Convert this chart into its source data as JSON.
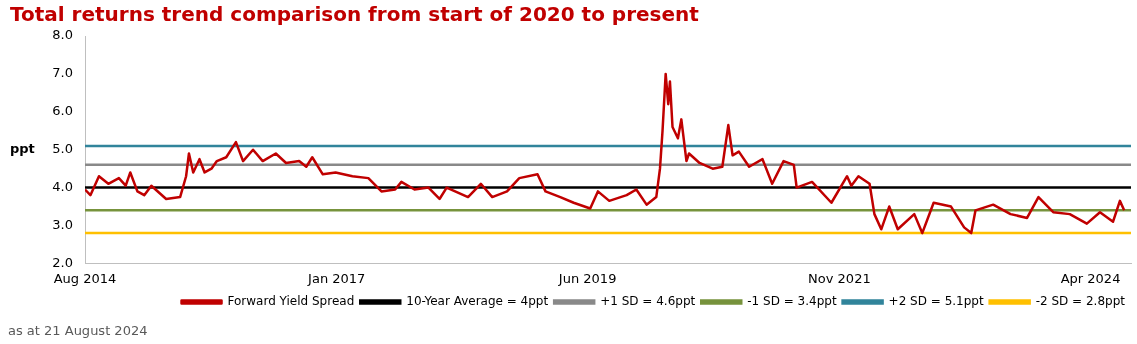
{
  "chart_data": {
    "type": "line",
    "title": "Total returns trend comparison from start of 2020 to present",
    "ylabel": "ppt",
    "annotations": [
      "as at 21 August 2024"
    ],
    "x": [
      "2014-08-01",
      "2014-08-20",
      "2014-09-19",
      "2014-10-22",
      "2014-11-28",
      "2014-12-22",
      "2015-01-07",
      "2015-02-01",
      "2015-02-25",
      "2015-03-22",
      "2015-05-13",
      "2015-07-01",
      "2015-07-22",
      "2015-08-01",
      "2015-08-16",
      "2015-09-07",
      "2015-09-25",
      "2015-10-19",
      "2015-11-07",
      "2015-12-10",
      "2016-01-13",
      "2016-02-07",
      "2016-03-13",
      "2016-04-16",
      "2016-06-01",
      "2016-07-07",
      "2016-08-22",
      "2016-09-16",
      "2016-10-07",
      "2016-11-13",
      "2016-12-28",
      "2017-02-25",
      "2017-04-22",
      "2017-06-07",
      "2017-07-25",
      "2017-08-16",
      "2017-10-01",
      "2017-11-19",
      "2017-12-28",
      "2018-01-22",
      "2018-04-07",
      "2018-05-22",
      "2018-07-01",
      "2018-08-22",
      "2018-10-04",
      "2018-12-07",
      "2019-01-04",
      "2019-02-25",
      "2019-04-13",
      "2019-06-10",
      "2019-07-07",
      "2019-08-16",
      "2019-10-16",
      "2019-11-19",
      "2019-12-25",
      "2020-01-28",
      "2020-02-10",
      "2020-02-19",
      "2020-03-01",
      "2020-03-10",
      "2020-03-16",
      "2020-03-25",
      "2020-04-13",
      "2020-04-25",
      "2020-05-13",
      "2020-05-22",
      "2020-06-28",
      "2020-08-13",
      "2020-09-16",
      "2020-10-07",
      "2020-10-22",
      "2020-11-13",
      "2020-12-19",
      "2021-02-04",
      "2021-03-10",
      "2021-04-19",
      "2021-05-25",
      "2021-06-04",
      "2021-07-28",
      "2021-10-04",
      "2021-11-28",
      "2021-12-13",
      "2022-01-07",
      "2022-02-15",
      "2022-03-04",
      "2022-03-28",
      "2022-04-25",
      "2022-05-25",
      "2022-07-22",
      "2022-08-19",
      "2022-09-28",
      "2022-11-28",
      "2023-01-13",
      "2023-02-07",
      "2023-02-22",
      "2023-04-25",
      "2023-06-25",
      "2023-08-22",
      "2023-10-01",
      "2023-11-22",
      "2024-01-19",
      "2024-03-19",
      "2024-05-04",
      "2024-06-19",
      "2024-07-13",
      "2024-07-28"
    ],
    "series": [
      {
        "name": "Forward Yield Spread",
        "color": "#c00000",
        "values": [
          3.95,
          3.8,
          4.3,
          4.1,
          4.25,
          4.05,
          4.4,
          3.9,
          3.8,
          4.05,
          3.7,
          3.75,
          4.3,
          4.9,
          4.4,
          4.75,
          4.4,
          4.5,
          4.7,
          4.8,
          5.2,
          4.7,
          5.0,
          4.7,
          4.9,
          4.65,
          4.7,
          4.55,
          4.8,
          4.35,
          4.4,
          4.3,
          4.25,
          3.9,
          3.95,
          4.15,
          3.95,
          4.0,
          3.7,
          4.0,
          3.75,
          4.1,
          3.75,
          3.9,
          4.25,
          4.35,
          3.9,
          3.75,
          3.6,
          3.45,
          3.9,
          3.65,
          3.8,
          3.95,
          3.55,
          3.75,
          4.5,
          5.5,
          7.0,
          6.2,
          6.8,
          5.6,
          5.3,
          5.8,
          4.7,
          4.9,
          4.65,
          4.5,
          4.55,
          5.65,
          4.85,
          4.95,
          4.55,
          4.75,
          4.1,
          4.7,
          4.6,
          4.0,
          4.15,
          3.6,
          4.3,
          4.05,
          4.3,
          4.1,
          3.3,
          2.9,
          3.5,
          2.9,
          3.3,
          2.8,
          3.6,
          3.5,
          2.95,
          2.8,
          3.4,
          3.55,
          3.3,
          3.2,
          3.75,
          3.35,
          3.3,
          3.05,
          3.35,
          3.1,
          3.65,
          3.4
        ]
      }
    ],
    "ref_lines": [
      {
        "axis": "y",
        "value": 4,
        "label": "10-Year Average = 4ppt",
        "color": "#000000"
      },
      {
        "axis": "y",
        "value": 4.6,
        "label": "+1 SD = 4.6ppt",
        "color": "#898989"
      },
      {
        "axis": "y",
        "value": 3.4,
        "label": "-1 SD = 3.4ppt",
        "color": "#77933c"
      },
      {
        "axis": "y",
        "value": 5.1,
        "label": "+2 SD = 5.1ppt",
        "color": "#31849b"
      },
      {
        "axis": "y",
        "value": 2.8,
        "label": "-2 SD = 2.8ppt",
        "color": "#ffc000"
      }
    ],
    "xlim": [
      "2014-08-01",
      "2024-08-21"
    ],
    "xticks": [
      {
        "value": "2014-08-01",
        "label": "Aug 2014"
      },
      {
        "value": "2017-01-01",
        "label": "Jan 2017"
      },
      {
        "value": "2019-06-01",
        "label": "Jun 2019"
      },
      {
        "value": "2021-11-01",
        "label": "Nov 2021"
      },
      {
        "value": "2024-04-01",
        "label": "Apr 2024"
      }
    ],
    "ylim": [
      2,
      8
    ],
    "yticks": [
      {
        "value": 2,
        "label": "2.0"
      },
      {
        "value": 3,
        "label": "3.0"
      },
      {
        "value": 4,
        "label": "4.0"
      },
      {
        "value": 5,
        "label": "5.0"
      },
      {
        "value": 6,
        "label": "6.0"
      },
      {
        "value": 7,
        "label": "7.0"
      },
      {
        "value": 8,
        "label": "8.0"
      }
    ],
    "grid": false,
    "legend": "bottom",
    "marker": "none",
    "line_style": "solid"
  }
}
